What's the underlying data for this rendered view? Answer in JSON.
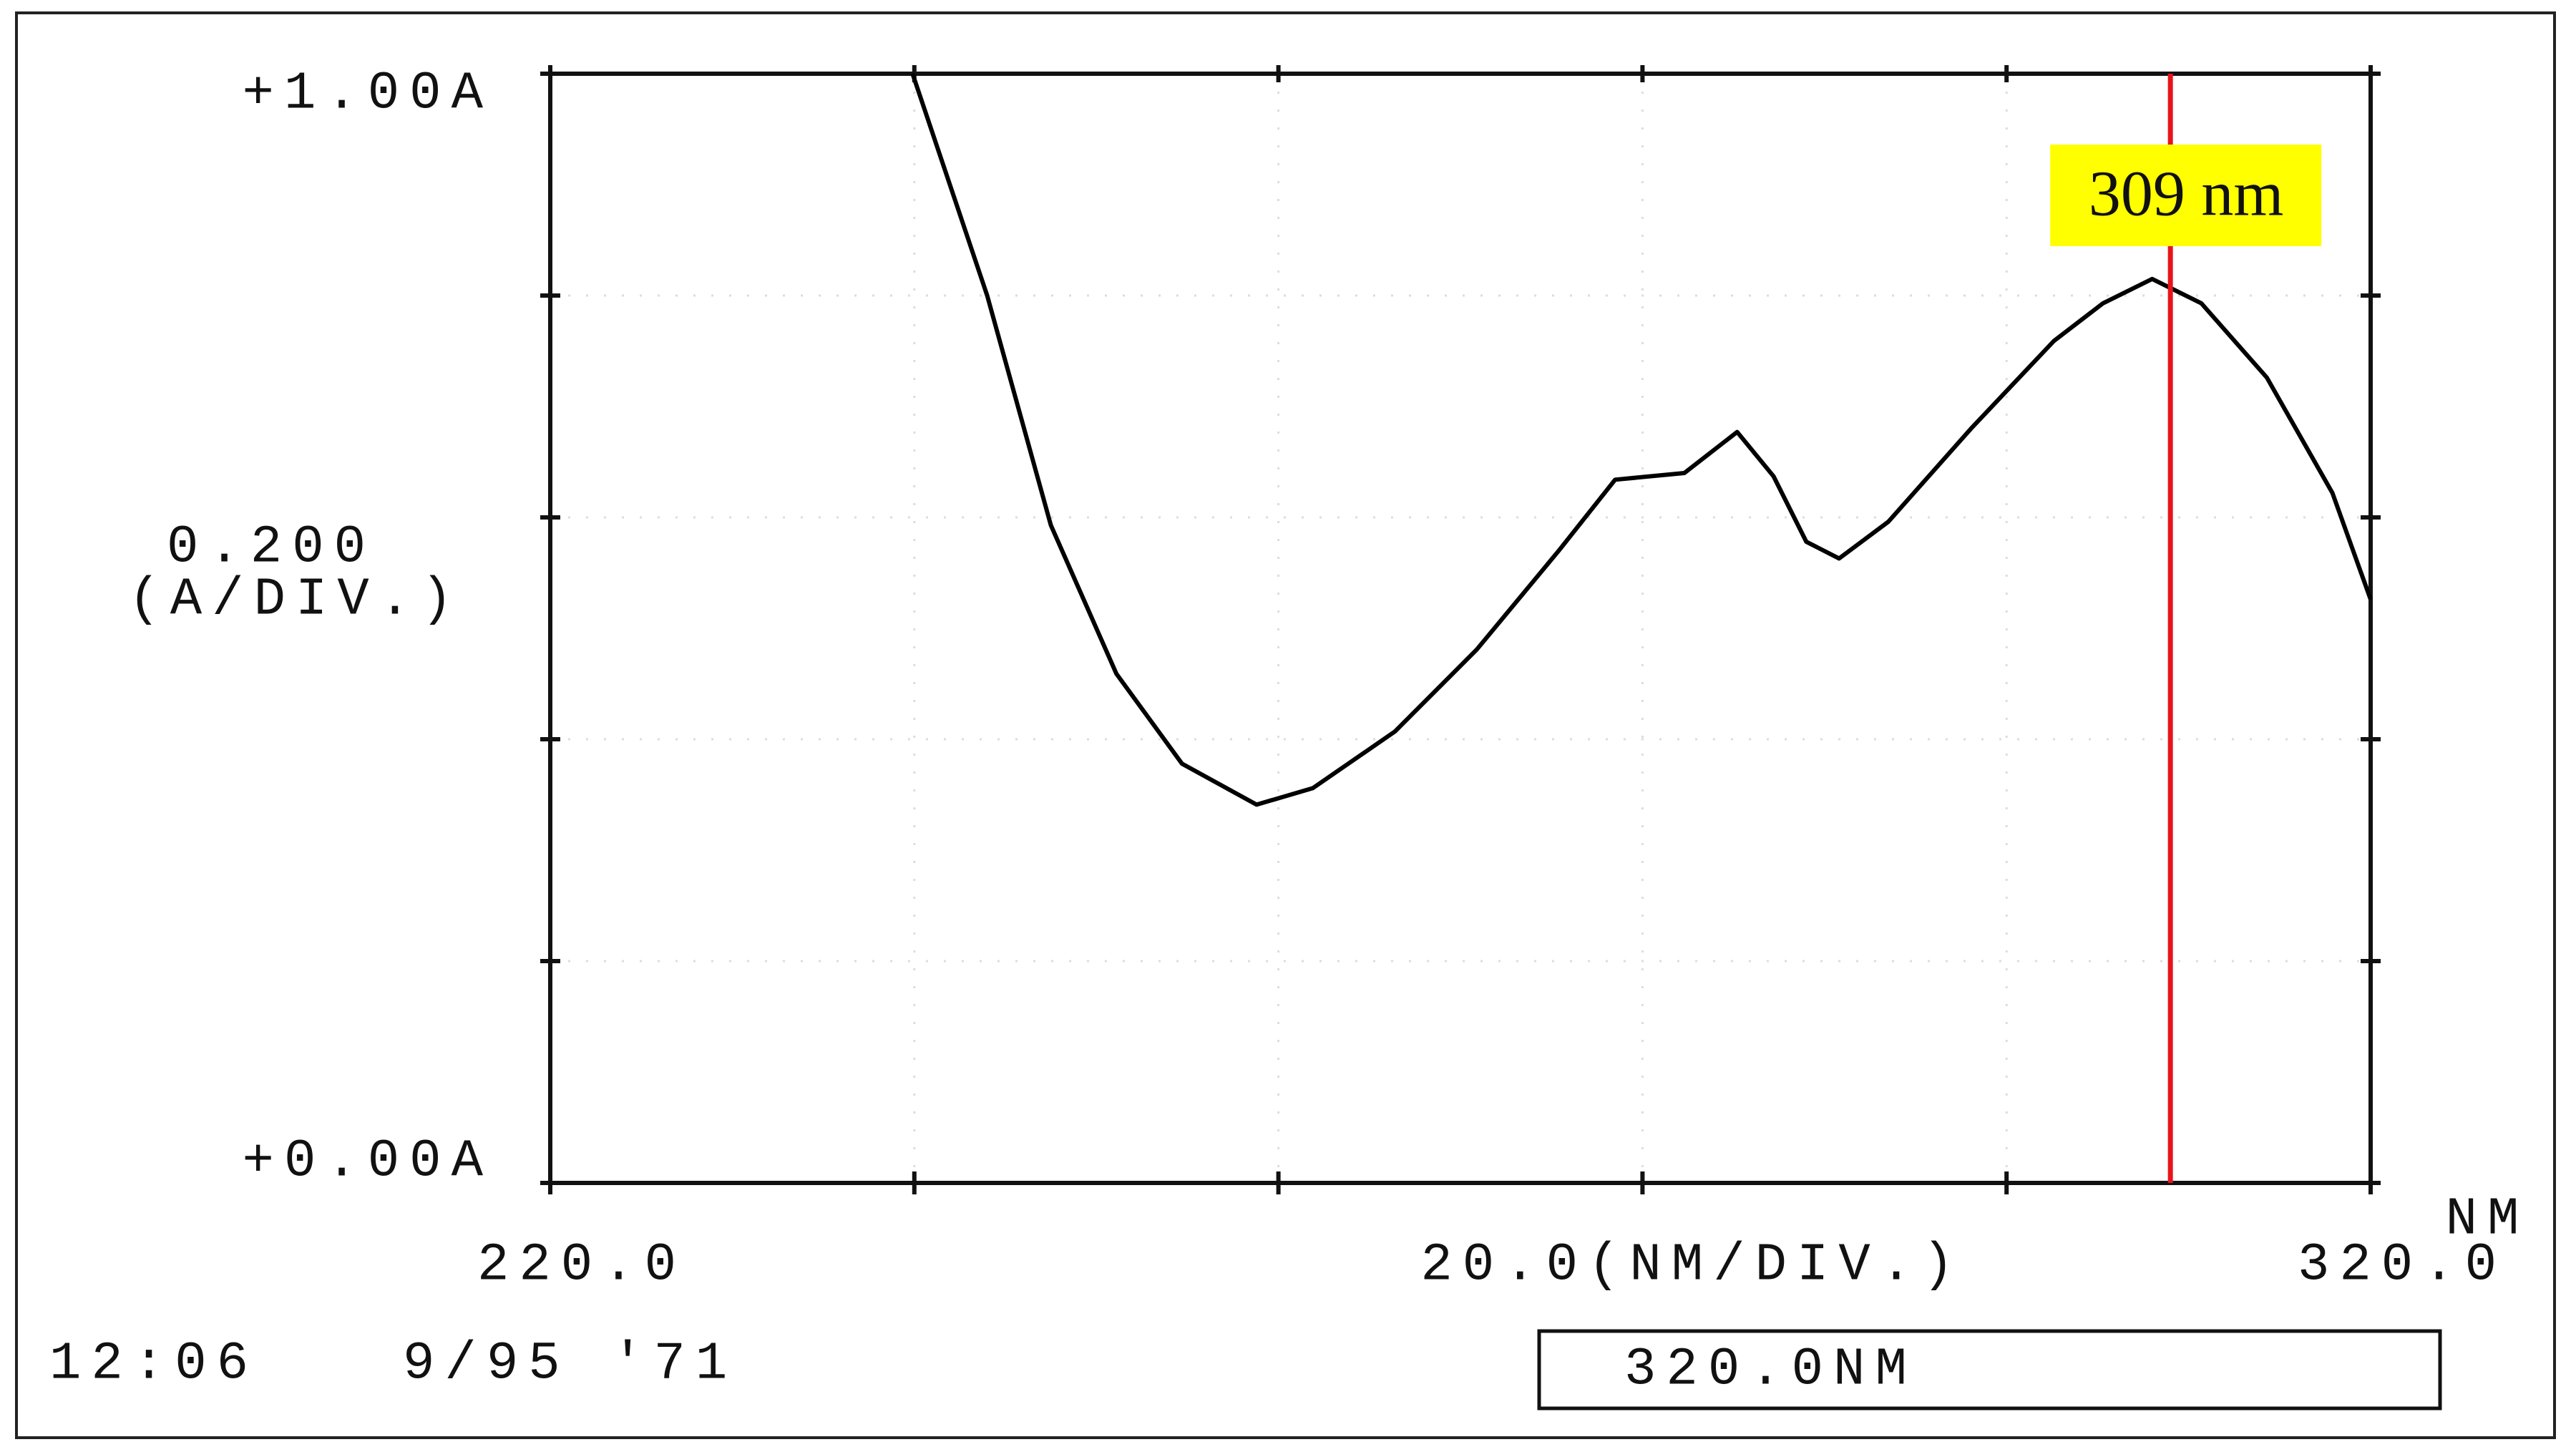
{
  "chart_data": {
    "type": "line",
    "y_scale_label": "0.200",
    "y_unit_label": "(A/DIV.)",
    "x_scale_label": "20.0(NM/DIV.)",
    "x_unit_label": "NM",
    "xlim": [
      220,
      320
    ],
    "ylim": [
      0,
      1
    ],
    "xticks": [
      {
        "value": 220,
        "label": "220.0"
      },
      {
        "value": 240
      },
      {
        "value": 260
      },
      {
        "value": 280
      },
      {
        "value": 300
      },
      {
        "value": 320,
        "label": "320.0"
      }
    ],
    "yticks": [
      {
        "value": 0,
        "label": "+0.00A"
      },
      {
        "value": 0.2
      },
      {
        "value": 0.4
      },
      {
        "value": 0.6
      },
      {
        "value": 0.8
      },
      {
        "value": 1,
        "label": "+1.00A"
      }
    ],
    "grid": true,
    "series": [
      {
        "color": "#000000",
        "x": [
          239.9,
          244.0,
          247.5,
          251.1,
          254.7,
          258.8,
          261.9,
          266.4,
          270.9,
          275.4,
          278.5,
          282.3,
          285.2,
          287.2,
          289.0,
          290.8,
          293.5,
          298.1,
          302.6,
          305.3,
          308.0,
          310.7,
          314.3,
          317.9,
          320.0
        ],
        "values": [
          1.0,
          0.8,
          0.593,
          0.459,
          0.378,
          0.341,
          0.356,
          0.407,
          0.481,
          0.57,
          0.634,
          0.64,
          0.677,
          0.637,
          0.578,
          0.563,
          0.596,
          0.681,
          0.759,
          0.793,
          0.815,
          0.793,
          0.726,
          0.622,
          0.526
        ]
      }
    ],
    "annotation": {
      "x": 309,
      "text": "309 nm",
      "line_color": "#e8141b",
      "box_color": "#ffff00"
    },
    "time": "12:06",
    "date": "9/95 '71",
    "status": "320.0NM"
  }
}
